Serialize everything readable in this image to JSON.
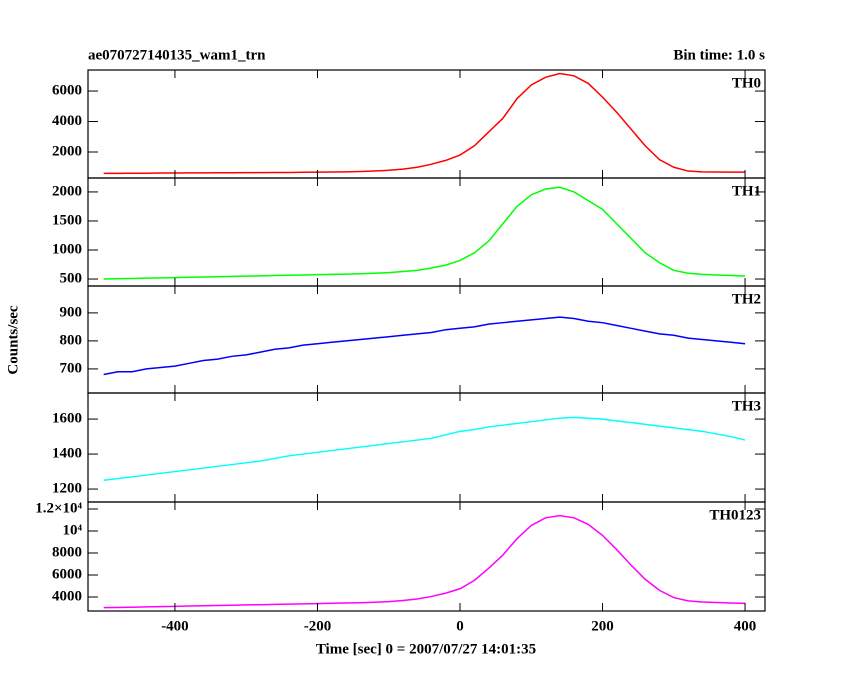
{
  "figure": {
    "title": "ae070727140135_wam1_trn",
    "subtitle": "Bin time: 1.0 s",
    "ylabel": "Counts/sec",
    "xlabel": "Time [sec] 0 = 2007/07/27 14:01:35"
  },
  "chart_data": [
    {
      "type": "line",
      "name": "TH0",
      "color": "#ff0000",
      "x": [
        -500,
        -480,
        -460,
        -440,
        -420,
        -400,
        -380,
        -360,
        -340,
        -320,
        -300,
        -280,
        -260,
        -240,
        -220,
        -200,
        -180,
        -160,
        -140,
        -120,
        -100,
        -80,
        -60,
        -40,
        -20,
        0,
        20,
        40,
        60,
        80,
        100,
        120,
        140,
        160,
        180,
        200,
        220,
        240,
        260,
        280,
        300,
        320,
        340,
        360,
        380,
        400
      ],
      "values": [
        600,
        600,
        610,
        610,
        620,
        620,
        630,
        630,
        640,
        640,
        650,
        650,
        660,
        660,
        670,
        680,
        690,
        700,
        720,
        750,
        800,
        880,
        1000,
        1200,
        1450,
        1800,
        2400,
        3300,
        4200,
        5500,
        6400,
        6900,
        7150,
        7000,
        6500,
        5600,
        4600,
        3500,
        2400,
        1500,
        1000,
        750,
        700,
        690,
        680,
        680
      ],
      "xlim": [
        -522,
        428
      ],
      "xticks": [
        -400,
        -200,
        0,
        200,
        400
      ],
      "ylim": [
        295,
        7380
      ],
      "yticks": [
        2000,
        4000,
        6000
      ]
    },
    {
      "type": "line",
      "name": "TH1",
      "color": "#00ff00",
      "x": [
        -500,
        -480,
        -460,
        -440,
        -420,
        -400,
        -380,
        -360,
        -340,
        -320,
        -300,
        -280,
        -260,
        -240,
        -220,
        -200,
        -180,
        -160,
        -140,
        -120,
        -100,
        -80,
        -60,
        -40,
        -20,
        0,
        20,
        40,
        60,
        80,
        100,
        120,
        140,
        160,
        180,
        200,
        220,
        240,
        260,
        280,
        300,
        320,
        340,
        360,
        380,
        400
      ],
      "values": [
        500,
        505,
        510,
        515,
        520,
        525,
        530,
        535,
        540,
        545,
        550,
        555,
        560,
        565,
        570,
        575,
        580,
        585,
        590,
        600,
        610,
        630,
        650,
        690,
        740,
        820,
        950,
        1150,
        1450,
        1750,
        1950,
        2050,
        2080,
        2000,
        1850,
        1700,
        1450,
        1200,
        950,
        780,
        650,
        600,
        580,
        570,
        560,
        550
      ],
      "xlim": [
        -522,
        428
      ],
      "xticks": [
        -400,
        -200,
        0,
        200,
        400
      ],
      "ylim": [
        380,
        2240
      ],
      "yticks": [
        500,
        1000,
        1500,
        2000
      ]
    },
    {
      "type": "line",
      "name": "TH2",
      "color": "#0000ff",
      "x": [
        -500,
        -480,
        -460,
        -440,
        -420,
        -400,
        -380,
        -360,
        -340,
        -320,
        -300,
        -280,
        -260,
        -240,
        -220,
        -200,
        -180,
        -160,
        -140,
        -120,
        -100,
        -80,
        -60,
        -40,
        -20,
        0,
        20,
        40,
        60,
        80,
        100,
        120,
        140,
        160,
        180,
        200,
        220,
        240,
        260,
        280,
        300,
        320,
        340,
        360,
        380,
        400
      ],
      "values": [
        680,
        690,
        690,
        700,
        705,
        710,
        720,
        730,
        735,
        745,
        750,
        760,
        770,
        775,
        785,
        790,
        795,
        800,
        805,
        810,
        815,
        820,
        825,
        830,
        840,
        845,
        850,
        860,
        865,
        870,
        875,
        880,
        885,
        880,
        870,
        865,
        855,
        845,
        835,
        825,
        820,
        810,
        805,
        800,
        795,
        790
      ],
      "xlim": [
        -522,
        428
      ],
      "xticks": [
        -400,
        -200,
        0,
        200,
        400
      ],
      "ylim": [
        614,
        996
      ],
      "yticks": [
        700,
        800,
        900
      ]
    },
    {
      "type": "line",
      "name": "TH3",
      "color": "#00ffff",
      "x": [
        -500,
        -480,
        -460,
        -440,
        -420,
        -400,
        -380,
        -360,
        -340,
        -320,
        -300,
        -280,
        -260,
        -240,
        -220,
        -200,
        -180,
        -160,
        -140,
        -120,
        -100,
        -80,
        -60,
        -40,
        -20,
        0,
        20,
        40,
        60,
        80,
        100,
        120,
        140,
        160,
        180,
        200,
        220,
        240,
        260,
        280,
        300,
        320,
        340,
        360,
        380,
        400
      ],
      "values": [
        1250,
        1260,
        1270,
        1280,
        1290,
        1300,
        1310,
        1320,
        1330,
        1340,
        1350,
        1360,
        1375,
        1390,
        1400,
        1410,
        1420,
        1430,
        1440,
        1450,
        1460,
        1470,
        1480,
        1490,
        1510,
        1530,
        1540,
        1555,
        1565,
        1575,
        1585,
        1595,
        1605,
        1610,
        1605,
        1600,
        1590,
        1580,
        1570,
        1560,
        1550,
        1540,
        1530,
        1515,
        1500,
        1480
      ],
      "xlim": [
        -522,
        428
      ],
      "xticks": [
        -400,
        -200,
        0,
        200,
        400
      ],
      "ylim": [
        1126,
        1749
      ],
      "yticks": [
        1200,
        1400,
        1600
      ]
    },
    {
      "type": "line",
      "name": "TH0123",
      "color": "#ff00ff",
      "x": [
        -500,
        -480,
        -460,
        -440,
        -420,
        -400,
        -380,
        -360,
        -340,
        -320,
        -300,
        -280,
        -260,
        -240,
        -220,
        -200,
        -180,
        -160,
        -140,
        -120,
        -100,
        -80,
        -60,
        -40,
        -20,
        0,
        20,
        40,
        60,
        80,
        100,
        120,
        140,
        160,
        180,
        200,
        220,
        240,
        260,
        280,
        300,
        320,
        340,
        360,
        380,
        400
      ],
      "values": [
        3030,
        3050,
        3070,
        3100,
        3130,
        3150,
        3180,
        3200,
        3230,
        3250,
        3280,
        3300,
        3330,
        3350,
        3380,
        3400,
        3430,
        3450,
        3480,
        3520,
        3580,
        3680,
        3820,
        4050,
        4350,
        4750,
        5500,
        6600,
        7800,
        9300,
        10500,
        11200,
        11400,
        11200,
        10600,
        9600,
        8300,
        6900,
        5600,
        4600,
        3950,
        3650,
        3550,
        3500,
        3450,
        3420
      ],
      "xlim": [
        -522,
        428
      ],
      "xticks": [
        -400,
        -200,
        0,
        200,
        400
      ],
      "ylim": [
        2727,
        12636
      ],
      "yticks": [
        4000,
        6000,
        8000,
        {
          "value": 10000,
          "label": "10⁴"
        },
        {
          "value": 12000,
          "label": "1.2×10⁴"
        }
      ]
    }
  ]
}
